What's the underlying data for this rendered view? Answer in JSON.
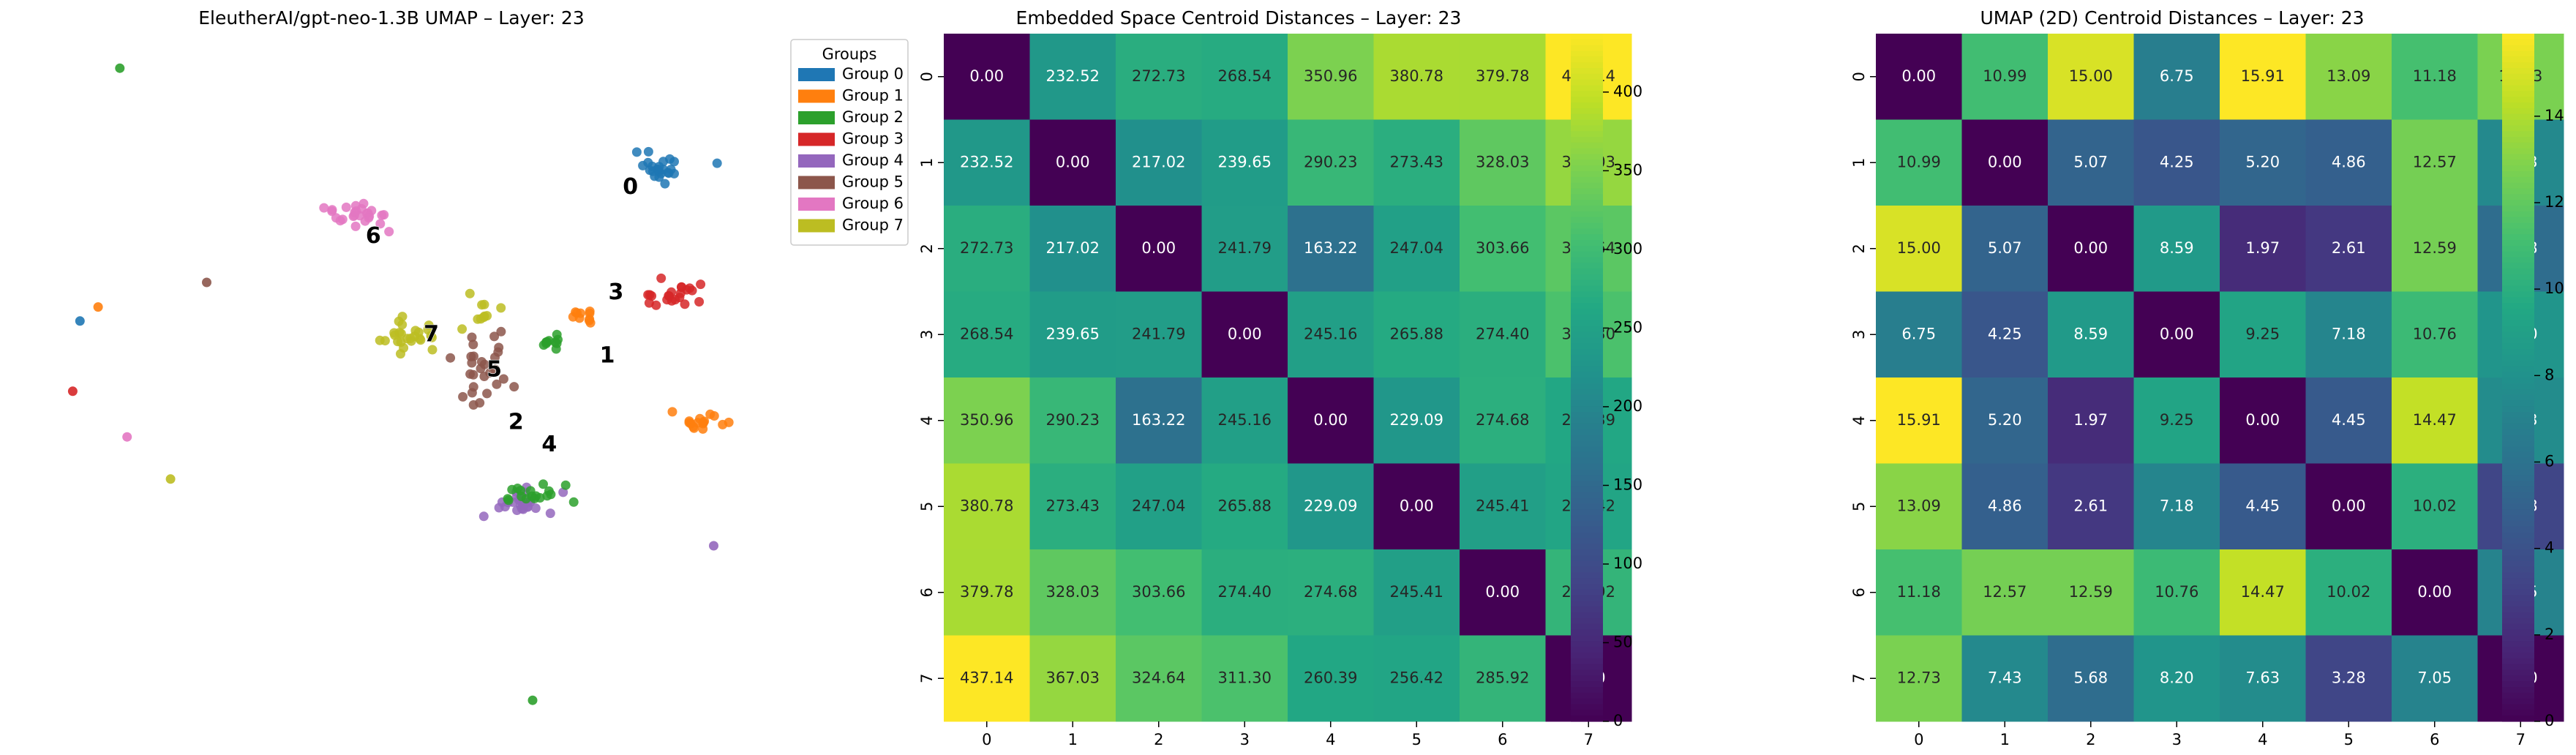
{
  "chart_data": [
    {
      "type": "scatter",
      "title": "EleutherAI/gpt-neo-1.3B UMAP – Layer: 23",
      "xlim": [
        0,
        100
      ],
      "ylim": [
        0,
        100
      ],
      "grid": false,
      "axes_visible": false,
      "legend": {
        "title": "Groups",
        "placement": "outside-right-top",
        "entries": [
          "Group 0",
          "Group 1",
          "Group 2",
          "Group 3",
          "Group 4",
          "Group 5",
          "Group 6",
          "Group 7"
        ]
      },
      "group_colors": [
        "#1f77b4",
        "#ff7f0e",
        "#2ca02c",
        "#d62728",
        "#9467bd",
        "#8c564b",
        "#e377c2",
        "#bcbd22"
      ],
      "centroid_labels": [
        {
          "text": "0",
          "group": 0,
          "x": 83.0,
          "y": 78.5
        },
        {
          "text": "1",
          "group": 1,
          "x": 79.8,
          "y": 54.5
        },
        {
          "text": "2",
          "group": 2,
          "x": 67.2,
          "y": 45.0
        },
        {
          "text": "3",
          "group": 3,
          "x": 81.0,
          "y": 63.5
        },
        {
          "text": "4",
          "group": 4,
          "x": 71.8,
          "y": 41.8
        },
        {
          "text": "5",
          "group": 5,
          "x": 64.2,
          "y": 52.5
        },
        {
          "text": "6",
          "group": 6,
          "x": 47.5,
          "y": 71.5
        },
        {
          "text": "7",
          "group": 7,
          "x": 55.5,
          "y": 57.5
        }
      ],
      "clusters": [
        {
          "group": 0,
          "count": 24,
          "cx": 87.5,
          "cy": 81.5,
          "sx": 3.2,
          "sy": 2.0
        },
        {
          "group": 1,
          "count": 16,
          "cx": 92.5,
          "cy": 45.0,
          "sx": 3.0,
          "sy": 0.9
        },
        {
          "group": 1,
          "count": 10,
          "cx": 76.5,
          "cy": 60.5,
          "sx": 2.2,
          "sy": 1.4
        },
        {
          "group": 3,
          "count": 22,
          "cx": 88.5,
          "cy": 63.0,
          "sx": 4.0,
          "sy": 1.3
        },
        {
          "group": 4,
          "count": 26,
          "cx": 67.5,
          "cy": 33.5,
          "sx": 4.2,
          "sy": 2.0
        },
        {
          "group": 2,
          "count": 18,
          "cx": 68.5,
          "cy": 34.8,
          "sx": 4.8,
          "sy": 1.2
        },
        {
          "group": 2,
          "count": 10,
          "cx": 72.5,
          "cy": 56.5,
          "sx": 2.0,
          "sy": 1.0
        },
        {
          "group": 5,
          "count": 28,
          "cx": 63.0,
          "cy": 53.0,
          "sx": 3.6,
          "sy": 5.5
        },
        {
          "group": 6,
          "count": 26,
          "cx": 45.5,
          "cy": 74.5,
          "sx": 4.0,
          "sy": 1.6
        },
        {
          "group": 7,
          "count": 26,
          "cx": 52.5,
          "cy": 57.5,
          "sx": 3.0,
          "sy": 1.8
        },
        {
          "group": 7,
          "count": 10,
          "cx": 63.0,
          "cy": 61.5,
          "sx": 2.0,
          "sy": 1.5
        }
      ],
      "outliers": [
        {
          "group": 2,
          "x": 12.5,
          "y": 95.5
        },
        {
          "group": 5,
          "x": 24.5,
          "y": 65.0
        },
        {
          "group": 1,
          "x": 9.5,
          "y": 61.5
        },
        {
          "group": 0,
          "x": 7.0,
          "y": 59.5
        },
        {
          "group": 3,
          "x": 6.0,
          "y": 49.5
        },
        {
          "group": 6,
          "x": 13.5,
          "y": 43.0
        },
        {
          "group": 7,
          "x": 19.5,
          "y": 37.0
        },
        {
          "group": 4,
          "x": 94.5,
          "y": 27.5
        },
        {
          "group": 2,
          "x": 69.5,
          "y": 5.5
        }
      ]
    },
    {
      "type": "heatmap",
      "title": "Embedded Space Centroid Distances – Layer: 23",
      "colormap": "viridis",
      "x_categories": [
        "0",
        "1",
        "2",
        "3",
        "4",
        "5",
        "6",
        "7"
      ],
      "y_categories": [
        "0",
        "1",
        "2",
        "3",
        "4",
        "5",
        "6",
        "7"
      ],
      "vmin": 0,
      "vmax": 437.14,
      "colorbar_ticks": [
        0,
        50,
        100,
        150,
        200,
        250,
        300,
        350,
        400
      ],
      "values": [
        [
          0.0,
          232.52,
          272.73,
          268.54,
          350.96,
          380.78,
          379.78,
          437.14
        ],
        [
          232.52,
          0.0,
          217.02,
          239.65,
          290.23,
          273.43,
          328.03,
          367.03
        ],
        [
          272.73,
          217.02,
          0.0,
          241.79,
          163.22,
          247.04,
          303.66,
          324.64
        ],
        [
          268.54,
          239.65,
          241.79,
          0.0,
          245.16,
          265.88,
          274.4,
          311.3
        ],
        [
          350.96,
          290.23,
          163.22,
          245.16,
          0.0,
          229.09,
          274.68,
          260.39
        ],
        [
          380.78,
          273.43,
          247.04,
          265.88,
          229.09,
          0.0,
          245.41,
          256.42
        ],
        [
          379.78,
          328.03,
          303.66,
          274.4,
          274.68,
          245.41,
          0.0,
          285.92
        ],
        [
          437.14,
          367.03,
          324.64,
          311.3,
          260.39,
          256.42,
          285.92,
          0.0
        ]
      ]
    },
    {
      "type": "heatmap",
      "title": "UMAP (2D) Centroid Distances – Layer: 23",
      "colormap": "viridis",
      "x_categories": [
        "0",
        "1",
        "2",
        "3",
        "4",
        "5",
        "6",
        "7"
      ],
      "y_categories": [
        "0",
        "1",
        "2",
        "3",
        "4",
        "5",
        "6",
        "7"
      ],
      "vmin": 0,
      "vmax": 15.91,
      "colorbar_ticks": [
        0,
        2,
        4,
        6,
        8,
        10,
        12,
        14
      ],
      "values": [
        [
          0.0,
          10.99,
          15.0,
          6.75,
          15.91,
          13.09,
          11.18,
          12.73
        ],
        [
          10.99,
          0.0,
          5.07,
          4.25,
          5.2,
          4.86,
          12.57,
          7.43
        ],
        [
          15.0,
          5.07,
          0.0,
          8.59,
          1.97,
          2.61,
          12.59,
          5.68
        ],
        [
          6.75,
          4.25,
          8.59,
          0.0,
          9.25,
          7.18,
          10.76,
          8.2
        ],
        [
          15.91,
          5.2,
          1.97,
          9.25,
          0.0,
          4.45,
          14.47,
          7.63
        ],
        [
          13.09,
          4.86,
          2.61,
          7.18,
          4.45,
          0.0,
          10.02,
          3.28
        ],
        [
          11.18,
          12.57,
          12.59,
          10.76,
          14.47,
          10.02,
          0.0,
          7.05
        ],
        [
          12.73,
          7.43,
          5.68,
          8.2,
          7.63,
          3.28,
          7.05,
          0.0
        ]
      ]
    }
  ]
}
